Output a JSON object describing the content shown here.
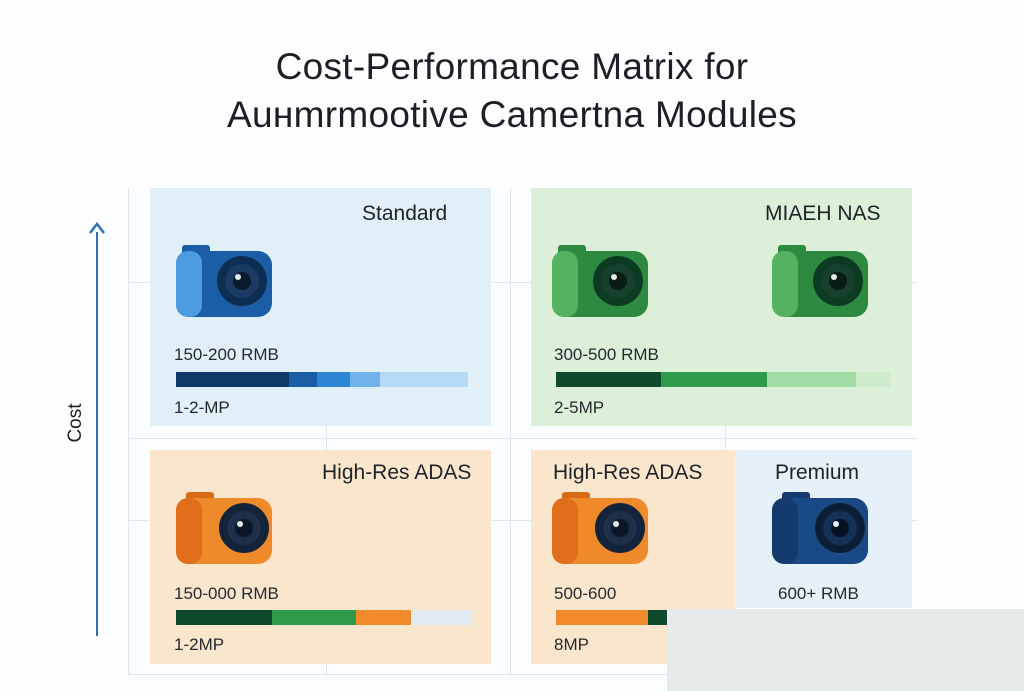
{
  "title": {
    "line1": "Cost-Performance Matrix for",
    "line2": "Auнmrmootive Camertna Modules"
  },
  "axis": {
    "ylabel": "Cost",
    "arrow_color": "#2f6fb5"
  },
  "panels": {
    "standard": {
      "label": "Standard",
      "price": "150-200 RMB",
      "resolution": "1-2-MP",
      "camera_color": "blue",
      "bar_colors": [
        "#0f3869",
        "#1b5ea5",
        "#2e86d6",
        "#6fb3ea",
        "#b7daf4"
      ]
    },
    "mid": {
      "label": "MIAEH NAS",
      "price": "300-500 RMB",
      "resolution": "2-5MP",
      "camera_color": "green",
      "bar_colors": [
        "#0f4a2c",
        "#2e9a4a",
        "#a3dda6",
        "#cdebcb"
      ]
    },
    "high_res_left": {
      "label": "High-Res ADAS",
      "price": "150-000 RMB",
      "resolution": "1-2MP",
      "camera_color": "orange",
      "bar_colors": [
        "#0f4a2c",
        "#2e9a4a",
        "#f08a2a",
        "#e2ebf2"
      ]
    },
    "high_res_right": {
      "label": "High-Res ADAS",
      "price": "500-600",
      "resolution": "8MP",
      "camera_color": "orange",
      "bar_colors": [
        "#f08a2a",
        "#0f4a2c"
      ]
    },
    "premium": {
      "label": "Premium",
      "price": "600+ RMB",
      "camera_color": "navy"
    }
  }
}
